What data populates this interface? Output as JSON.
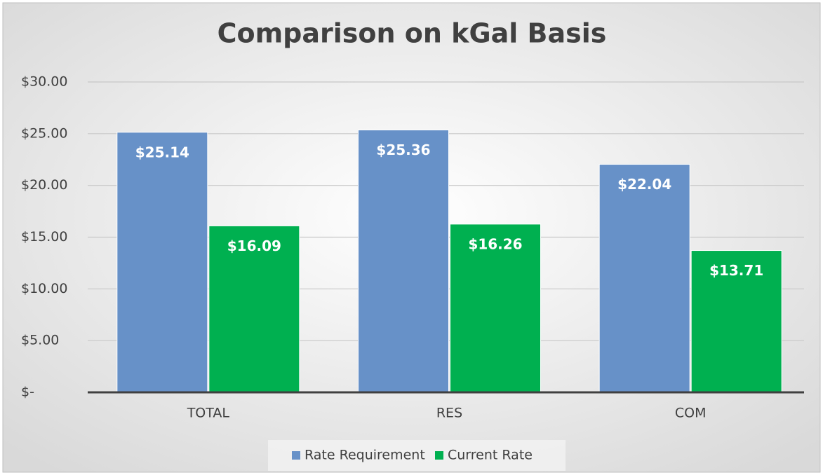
{
  "chart_data": {
    "type": "bar",
    "title": "Comparison on kGal Basis",
    "categories": [
      "TOTAL",
      "RES",
      "COM"
    ],
    "series": [
      {
        "name": "Rate Requirement",
        "color": "#6791c8",
        "values": [
          25.14,
          25.36,
          22.04
        ],
        "value_labels": [
          "$25.14",
          "$25.36",
          "$22.04"
        ]
      },
      {
        "name": "Current Rate",
        "color": "#00b050",
        "values": [
          16.09,
          16.26,
          13.71
        ],
        "value_labels": [
          "$16.09",
          "$16.26",
          "$13.71"
        ]
      }
    ],
    "ylim": [
      0,
      30
    ],
    "yticks": [
      {
        "value": 0,
        "label": "$-"
      },
      {
        "value": 5,
        "label": "$5.00"
      },
      {
        "value": 10,
        "label": "$10.00"
      },
      {
        "value": 15,
        "label": "$15.00"
      },
      {
        "value": 20,
        "label": "$20.00"
      },
      {
        "value": 25,
        "label": "$25.00"
      },
      {
        "value": 30,
        "label": "$30.00"
      }
    ],
    "grid": true,
    "legend": "bottom"
  }
}
